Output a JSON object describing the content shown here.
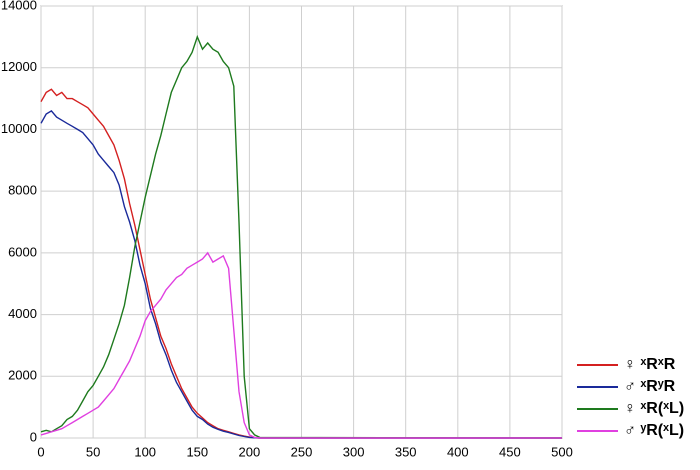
{
  "chart_data": {
    "type": "line",
    "x": [
      0,
      5,
      10,
      15,
      20,
      25,
      30,
      35,
      40,
      45,
      50,
      55,
      60,
      65,
      70,
      75,
      80,
      85,
      90,
      95,
      100,
      105,
      110,
      115,
      120,
      125,
      130,
      135,
      140,
      145,
      150,
      155,
      160,
      165,
      170,
      175,
      180,
      185,
      190,
      195,
      200,
      205,
      210,
      500
    ],
    "series": [
      {
        "name": "♀ ˣRˣR",
        "color": "#d42020",
        "values": [
          10900,
          11200,
          11300,
          11100,
          11200,
          11000,
          11000,
          10900,
          10800,
          10700,
          10500,
          10300,
          10100,
          9800,
          9500,
          9000,
          8400,
          7600,
          6900,
          6100,
          5300,
          4500,
          3900,
          3300,
          2900,
          2400,
          2000,
          1600,
          1300,
          1000,
          800,
          650,
          500,
          400,
          300,
          250,
          200,
          150,
          100,
          60,
          30,
          10,
          0,
          0
        ]
      },
      {
        "name": "♂ ˣRʸR",
        "color": "#1a2a9a",
        "values": [
          10200,
          10500,
          10600,
          10400,
          10300,
          10200,
          10100,
          10000,
          9900,
          9700,
          9500,
          9200,
          9000,
          8800,
          8600,
          8200,
          7500,
          7000,
          6400,
          5600,
          5000,
          4200,
          3700,
          3100,
          2700,
          2200,
          1800,
          1500,
          1200,
          900,
          700,
          600,
          450,
          350,
          280,
          220,
          180,
          130,
          80,
          50,
          20,
          5,
          0,
          0
        ]
      },
      {
        "name": "♀ ˣR(ˣL)",
        "color": "#1e7a1e",
        "values": [
          200,
          250,
          200,
          300,
          400,
          600,
          700,
          900,
          1200,
          1500,
          1700,
          2000,
          2300,
          2700,
          3200,
          3700,
          4300,
          5200,
          6200,
          7000,
          7800,
          8500,
          9200,
          9800,
          10500,
          11200,
          11600,
          12000,
          12200,
          12500,
          13000,
          12600,
          12800,
          12600,
          12500,
          12200,
          12000,
          11400,
          7000,
          2000,
          300,
          100,
          20,
          0
        ]
      },
      {
        "name": "♂ ʸR(ˣL)",
        "color": "#e040e0",
        "values": [
          100,
          150,
          200,
          250,
          300,
          400,
          500,
          600,
          700,
          800,
          900,
          1000,
          1200,
          1400,
          1600,
          1900,
          2200,
          2500,
          2900,
          3300,
          3800,
          4100,
          4300,
          4500,
          4800,
          5000,
          5200,
          5300,
          5500,
          5600,
          5700,
          5800,
          6000,
          5700,
          5800,
          5900,
          5500,
          3500,
          1500,
          500,
          100,
          20,
          0,
          0
        ]
      }
    ],
    "xlim": [
      0,
      500
    ],
    "xticks": [
      0,
      50,
      100,
      150,
      200,
      250,
      300,
      350,
      400,
      450,
      500
    ],
    "ylim": [
      0,
      14000
    ],
    "yticks": [
      0,
      2000,
      4000,
      6000,
      8000,
      10000,
      12000,
      14000
    ],
    "grid": true
  }
}
